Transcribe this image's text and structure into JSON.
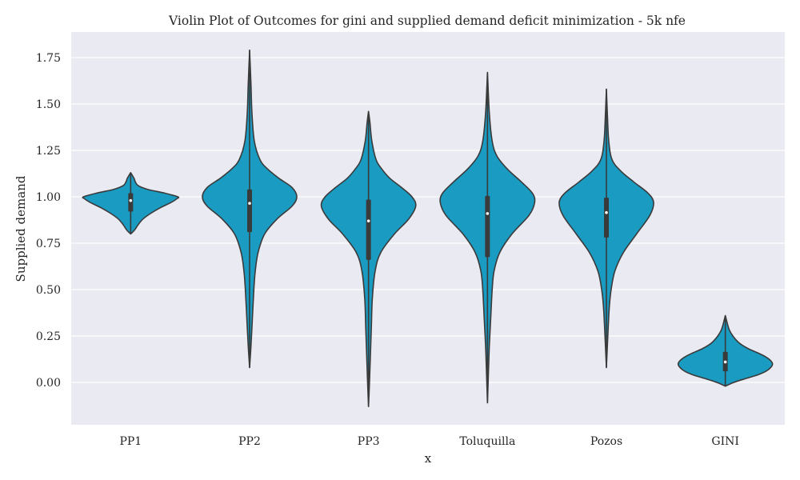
{
  "chart_data": {
    "type": "violin",
    "title": "Violin Plot of Outcomes for gini and supplied demand deficit minimization - 5k nfe",
    "xlabel": "x",
    "ylabel": "Supplied demand",
    "categories": [
      "PP1",
      "PP2",
      "PP3",
      "Toluquilla",
      "Pozos",
      "GINI"
    ],
    "ylim": [
      -0.22,
      1.88
    ],
    "yticks": [
      0.0,
      0.25,
      0.5,
      0.75,
      1.0,
      1.25,
      1.5,
      1.75
    ],
    "ytick_labels": [
      "0.00",
      "0.25",
      "0.50",
      "0.75",
      "1.00",
      "1.25",
      "1.50",
      "1.75"
    ],
    "grid": true,
    "colors": {
      "violin_fill": "#1a9bc2",
      "violin_edge": "#3a3a3a",
      "plot_background": "#eaeaf2",
      "gridline": "#ffffff",
      "median_marker": "#ffffff"
    },
    "violins": [
      {
        "name": "PP1",
        "min": 0.8,
        "q1": 0.92,
        "median": 0.98,
        "q3": 1.02,
        "max": 1.13,
        "density": [
          [
            0.8,
            0.0
          ],
          [
            0.82,
            0.08
          ],
          [
            0.85,
            0.16
          ],
          [
            0.88,
            0.26
          ],
          [
            0.91,
            0.42
          ],
          [
            0.94,
            0.62
          ],
          [
            0.97,
            0.86
          ],
          [
            0.99,
            0.98
          ],
          [
            1.0,
            1.0
          ],
          [
            1.02,
            0.72
          ],
          [
            1.04,
            0.36
          ],
          [
            1.06,
            0.16
          ],
          [
            1.08,
            0.1
          ],
          [
            1.1,
            0.07
          ],
          [
            1.13,
            0.0
          ]
        ]
      },
      {
        "name": "PP2",
        "min": 0.08,
        "q1": 0.81,
        "median": 0.965,
        "q3": 1.04,
        "max": 1.79,
        "density": [
          [
            0.08,
            0.0
          ],
          [
            0.2,
            0.03
          ],
          [
            0.35,
            0.06
          ],
          [
            0.5,
            0.09
          ],
          [
            0.6,
            0.12
          ],
          [
            0.7,
            0.18
          ],
          [
            0.8,
            0.32
          ],
          [
            0.88,
            0.58
          ],
          [
            0.95,
            0.9
          ],
          [
            1.0,
            1.0
          ],
          [
            1.05,
            0.9
          ],
          [
            1.1,
            0.62
          ],
          [
            1.15,
            0.38
          ],
          [
            1.2,
            0.22
          ],
          [
            1.3,
            0.1
          ],
          [
            1.45,
            0.05
          ],
          [
            1.6,
            0.03
          ],
          [
            1.79,
            0.0
          ]
        ]
      },
      {
        "name": "PP3",
        "min": -0.13,
        "q1": 0.66,
        "median": 0.87,
        "q3": 0.985,
        "max": 1.46,
        "density": [
          [
            -0.13,
            0.0
          ],
          [
            0.0,
            0.02
          ],
          [
            0.15,
            0.04
          ],
          [
            0.3,
            0.06
          ],
          [
            0.45,
            0.08
          ],
          [
            0.6,
            0.14
          ],
          [
            0.7,
            0.26
          ],
          [
            0.8,
            0.55
          ],
          [
            0.88,
            0.85
          ],
          [
            0.95,
            1.0
          ],
          [
            1.0,
            0.92
          ],
          [
            1.05,
            0.7
          ],
          [
            1.1,
            0.45
          ],
          [
            1.15,
            0.28
          ],
          [
            1.2,
            0.16
          ],
          [
            1.3,
            0.07
          ],
          [
            1.4,
            0.03
          ],
          [
            1.46,
            0.0
          ]
        ]
      },
      {
        "name": "Toluquilla",
        "min": -0.11,
        "q1": 0.675,
        "median": 0.91,
        "q3": 1.005,
        "max": 1.67,
        "density": [
          [
            -0.11,
            0.0
          ],
          [
            0.05,
            0.02
          ],
          [
            0.2,
            0.04
          ],
          [
            0.35,
            0.07
          ],
          [
            0.5,
            0.1
          ],
          [
            0.6,
            0.14
          ],
          [
            0.7,
            0.26
          ],
          [
            0.8,
            0.52
          ],
          [
            0.9,
            0.88
          ],
          [
            0.97,
            1.0
          ],
          [
            1.02,
            0.95
          ],
          [
            1.08,
            0.72
          ],
          [
            1.15,
            0.42
          ],
          [
            1.22,
            0.2
          ],
          [
            1.3,
            0.1
          ],
          [
            1.45,
            0.04
          ],
          [
            1.67,
            0.0
          ]
        ]
      },
      {
        "name": "Pozos",
        "min": 0.08,
        "q1": 0.78,
        "median": 0.915,
        "q3": 0.995,
        "max": 1.58,
        "density": [
          [
            0.08,
            0.0
          ],
          [
            0.25,
            0.03
          ],
          [
            0.4,
            0.06
          ],
          [
            0.5,
            0.1
          ],
          [
            0.6,
            0.18
          ],
          [
            0.7,
            0.36
          ],
          [
            0.8,
            0.64
          ],
          [
            0.9,
            0.92
          ],
          [
            0.97,
            1.0
          ],
          [
            1.02,
            0.88
          ],
          [
            1.08,
            0.58
          ],
          [
            1.14,
            0.3
          ],
          [
            1.2,
            0.12
          ],
          [
            1.3,
            0.05
          ],
          [
            1.45,
            0.02
          ],
          [
            1.58,
            0.0
          ]
        ]
      },
      {
        "name": "GINI",
        "min": -0.02,
        "q1": 0.06,
        "median": 0.11,
        "q3": 0.165,
        "max": 0.36,
        "density": [
          [
            -0.02,
            0.0
          ],
          [
            0.0,
            0.18
          ],
          [
            0.02,
            0.42
          ],
          [
            0.04,
            0.68
          ],
          [
            0.06,
            0.86
          ],
          [
            0.08,
            0.96
          ],
          [
            0.1,
            1.0
          ],
          [
            0.12,
            0.95
          ],
          [
            0.14,
            0.84
          ],
          [
            0.16,
            0.68
          ],
          [
            0.18,
            0.5
          ],
          [
            0.2,
            0.36
          ],
          [
            0.22,
            0.26
          ],
          [
            0.25,
            0.16
          ],
          [
            0.28,
            0.09
          ],
          [
            0.31,
            0.05
          ],
          [
            0.34,
            0.02
          ],
          [
            0.36,
            0.0
          ]
        ]
      }
    ]
  }
}
